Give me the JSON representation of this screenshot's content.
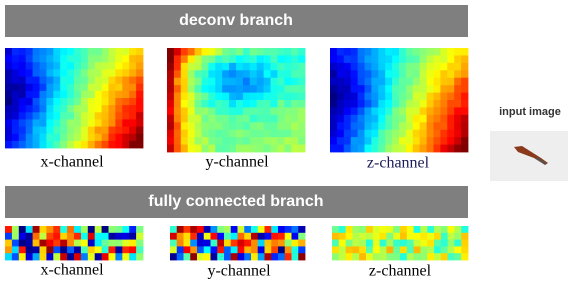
{
  "deconv_branch": {
    "title": "deconv branch",
    "panels": [
      {
        "label": "x-channel"
      },
      {
        "label": "y-channel"
      },
      {
        "label": "z-channel"
      }
    ]
  },
  "fc_branch": {
    "title": "fully connected branch",
    "panels": [
      {
        "label": "x-channel"
      },
      {
        "label": "y-channel"
      },
      {
        "label": "z-channel"
      }
    ]
  },
  "input_image": {
    "label": "input image"
  }
}
